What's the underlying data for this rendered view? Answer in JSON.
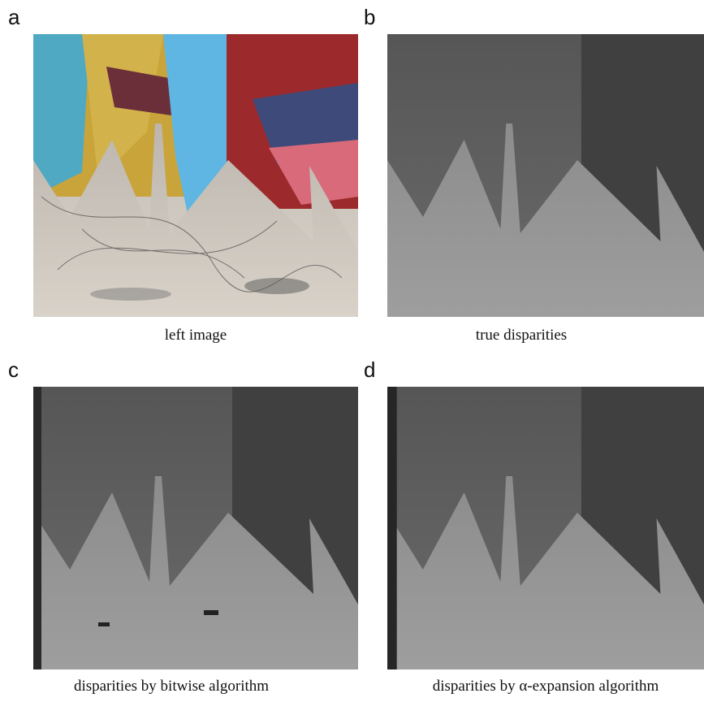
{
  "panels": [
    {
      "label": "a",
      "caption": "left image"
    },
    {
      "label": "b",
      "caption": "true disparities"
    },
    {
      "label": "c",
      "caption": "disparities by bitwise algorithm"
    },
    {
      "label": "d",
      "caption": "disparities by α-expansion algorithm"
    }
  ]
}
